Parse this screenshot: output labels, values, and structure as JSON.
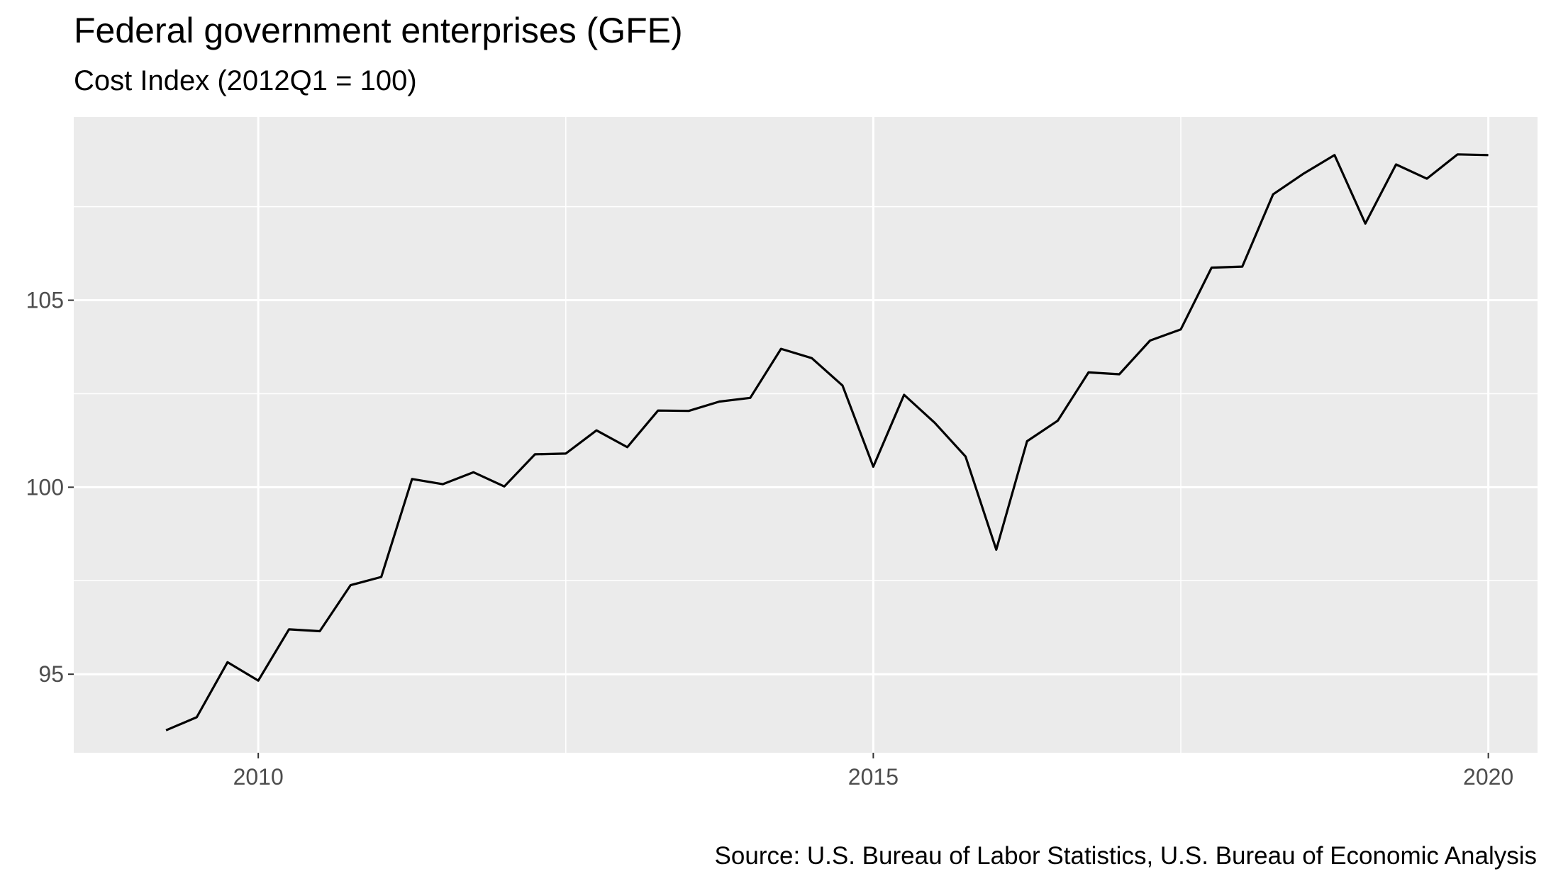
{
  "chart_data": {
    "type": "line",
    "title": "Federal government enterprises (GFE)",
    "subtitle": "Cost Index (2012Q1 = 100)",
    "caption": "Source: U.S. Bureau of Labor Statistics, U.S. Bureau of Economic Analysis",
    "xlabel": "",
    "ylabel": "",
    "x_ticks": [
      2010,
      2015,
      2020
    ],
    "y_ticks": [
      95,
      100,
      105
    ],
    "xlim": [
      2008.5,
      2020.4
    ],
    "ylim": [
      92.9,
      109.9
    ],
    "grid": true,
    "series": [
      {
        "x": [
          2009.25,
          2009.5,
          2009.75,
          2010.0,
          2010.25,
          2010.5,
          2010.75,
          2011.0,
          2011.25,
          2011.5,
          2011.75,
          2012.0,
          2012.25,
          2012.5,
          2012.75,
          2013.0,
          2013.25,
          2013.5,
          2013.75,
          2014.0,
          2014.25,
          2014.5,
          2014.75,
          2015.0,
          2015.25,
          2015.5,
          2015.75,
          2016.0,
          2016.25,
          2016.5,
          2016.75,
          2017.0,
          2017.25,
          2017.5,
          2017.75,
          2018.0,
          2018.25,
          2018.5,
          2018.75,
          2019.0,
          2019.25,
          2019.5,
          2019.75,
          2020.0
        ],
        "values": [
          93.5,
          93.85,
          95.32,
          94.83,
          96.2,
          96.15,
          97.38,
          97.6,
          100.22,
          100.08,
          100.4,
          100.02,
          100.88,
          100.9,
          101.52,
          101.07,
          102.05,
          102.04,
          102.29,
          102.39,
          103.7,
          103.45,
          102.72,
          100.55,
          102.47,
          101.72,
          100.82,
          98.33,
          101.23,
          101.78,
          103.07,
          103.02,
          103.92,
          104.22,
          105.87,
          105.9,
          107.83,
          108.39,
          108.88,
          107.05,
          108.63,
          108.25,
          108.9,
          108.88
        ]
      }
    ]
  }
}
